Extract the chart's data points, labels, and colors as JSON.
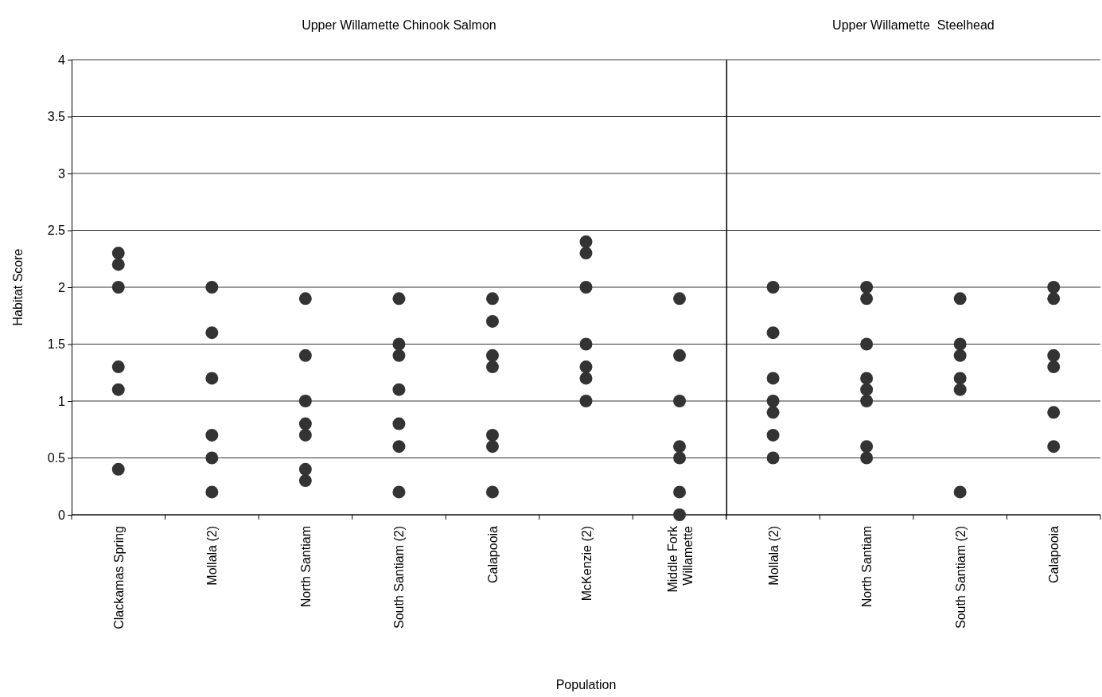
{
  "chart_data": [
    {
      "type": "scatter",
      "title": "Upper Willamette Chinook Salmon",
      "xlabel": "Population",
      "ylabel": "Habitat Score",
      "categories": [
        "Clackamas Spring",
        "Mollala (2)",
        "North Santiam",
        "South Santiam (2)",
        "Calapooia",
        "McKenzie (2)",
        "Middle Fork Willamette"
      ],
      "ylim": [
        0,
        4
      ],
      "yticks": [
        0,
        0.5,
        1,
        1.5,
        2,
        2.5,
        3,
        3.5,
        4
      ],
      "grid": "y",
      "marker": "circle",
      "series": [
        {
          "color": "#333333",
          "values": [
            2.3,
            2.0,
            1.9,
            1.9,
            1.9,
            2.4,
            1.9
          ]
        },
        {
          "color": "#333333",
          "values": [
            2.2,
            1.6,
            1.4,
            1.5,
            1.7,
            2.3,
            1.4
          ]
        },
        {
          "color": "#333333",
          "values": [
            2.0,
            1.2,
            1.0,
            1.4,
            1.4,
            2.0,
            1.0
          ]
        },
        {
          "color": "#333333",
          "values": [
            1.3,
            0.7,
            0.8,
            1.1,
            1.3,
            1.5,
            0.6
          ]
        },
        {
          "color": "#333333",
          "values": [
            1.1,
            0.5,
            0.7,
            0.8,
            0.7,
            1.3,
            0.5
          ]
        },
        {
          "color": "#333333",
          "values": [
            0.4,
            0.2,
            0.4,
            0.6,
            0.6,
            1.2,
            0.2
          ]
        },
        {
          "color": "#333333",
          "values": [
            null,
            null,
            0.3,
            0.2,
            0.2,
            1.0,
            0.0
          ]
        }
      ]
    },
    {
      "type": "scatter",
      "title": "Upper Willamette  Steelhead",
      "categories": [
        "Mollala (2)",
        "North Santiam",
        "South Santiam (2)",
        "Calapooia"
      ],
      "ylim": [
        0,
        4
      ],
      "yticks": [
        0,
        0.5,
        1,
        1.5,
        2,
        2.5,
        3,
        3.5,
        4
      ],
      "grid": "y",
      "marker": "circle",
      "tick_labels": "x",
      "series": [
        {
          "color": "#333333",
          "values": [
            2.0,
            2.0,
            1.9,
            2.0
          ]
        },
        {
          "color": "#333333",
          "values": [
            1.6,
            1.9,
            1.5,
            1.9
          ]
        },
        {
          "color": "#333333",
          "values": [
            1.2,
            1.5,
            1.4,
            1.4
          ]
        },
        {
          "color": "#333333",
          "values": [
            1.0,
            1.2,
            1.2,
            1.3
          ]
        },
        {
          "color": "#333333",
          "values": [
            0.9,
            1.1,
            1.1,
            0.9
          ]
        },
        {
          "color": "#333333",
          "values": [
            0.7,
            1.0,
            0.2,
            0.6
          ]
        },
        {
          "color": "#333333",
          "values": [
            0.5,
            0.6,
            null,
            null
          ]
        },
        {
          "color": "#333333",
          "values": [
            null,
            0.5,
            null,
            null
          ]
        }
      ]
    }
  ]
}
